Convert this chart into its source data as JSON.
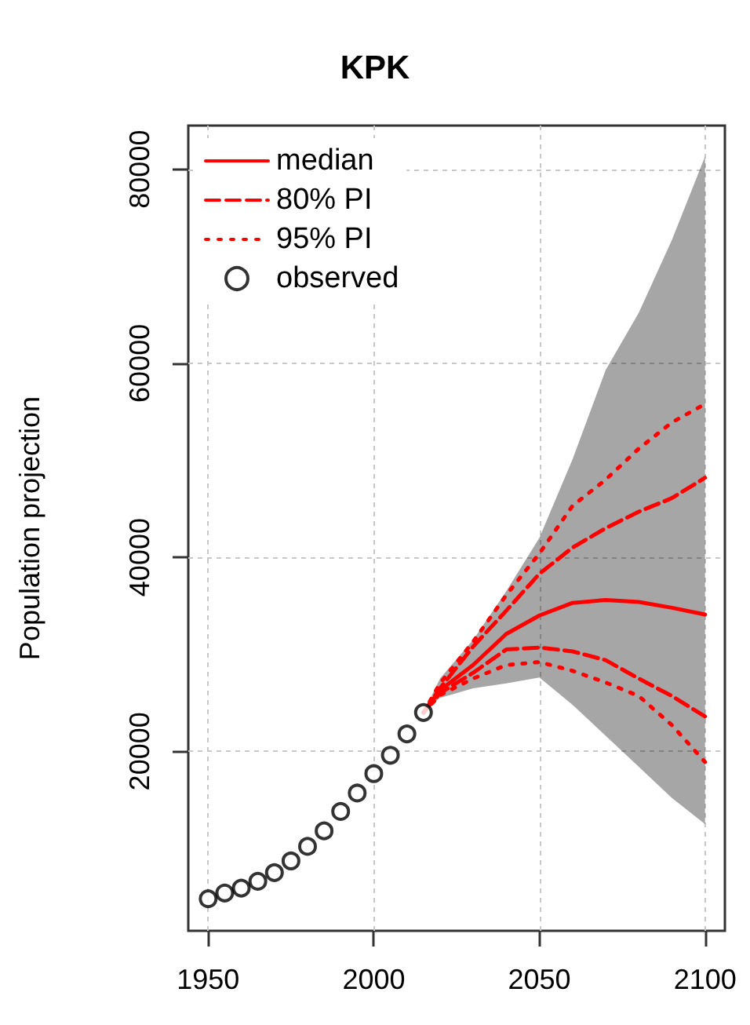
{
  "chart_data": {
    "type": "line",
    "title": "KPK",
    "ylabel": "Population projection",
    "xlim": [
      1944,
      2106
    ],
    "xticks": [
      1950,
      2000,
      2050,
      2100
    ],
    "ylim": [
      1500,
      84500
    ],
    "yticks": [
      20000,
      40000,
      60000,
      80000
    ],
    "grid": true,
    "legend": "top left",
    "series": [
      {
        "name": "median",
        "color": "#ff0000",
        "line_style": "solid",
        "marker": "none",
        "x": [
          2015,
          2020,
          2030,
          2040,
          2050,
          2060,
          2070,
          2080,
          2090,
          2100
        ],
        "values": [
          24000,
          26300,
          28900,
          32100,
          34000,
          35300,
          35600,
          35400,
          34800,
          34100
        ],
        "lower": [
          24000,
          25500,
          26500,
          27000,
          27600,
          24800,
          21600,
          18400,
          15200,
          12500
        ],
        "upper": [
          24000,
          27500,
          31500,
          36500,
          42000,
          50100,
          59300,
          65200,
          72700,
          81300
        ]
      },
      {
        "name": "80% PI",
        "color": "#ff0000",
        "line_style": "dashed",
        "marker": "none",
        "x": [
          2015,
          2020,
          2030,
          2040,
          2050,
          2060,
          2070,
          2080,
          2090,
          2100
        ],
        "values": [
          24000,
          26500,
          30800,
          34500,
          38300,
          41000,
          43000,
          44700,
          46100,
          48200
        ]
      },
      {
        "name": null,
        "color": "#ff0000",
        "line_style": "dashed",
        "marker": "none",
        "x": [
          2015,
          2020,
          2030,
          2040,
          2050,
          2060,
          2070,
          2080,
          2090,
          2100
        ],
        "values": [
          24000,
          26000,
          28100,
          30500,
          30700,
          30300,
          29400,
          27500,
          25700,
          23600
        ]
      },
      {
        "name": "95% PI",
        "color": "#ff0000",
        "line_style": "dotted",
        "marker": "none",
        "x": [
          2015,
          2020,
          2030,
          2040,
          2050,
          2060,
          2070,
          2080,
          2090,
          2100
        ],
        "values": [
          24000,
          27000,
          31300,
          36100,
          40400,
          45300,
          48000,
          51200,
          53900,
          55800
        ]
      },
      {
        "name": null,
        "color": "#ff0000",
        "line_style": "dotted",
        "marker": "none",
        "x": [
          2015,
          2020,
          2030,
          2040,
          2050,
          2060,
          2070,
          2080,
          2090,
          2100
        ],
        "values": [
          24000,
          25800,
          27500,
          28900,
          29200,
          28300,
          27100,
          25700,
          22700,
          18900
        ]
      },
      {
        "name": "observed",
        "type": "scatter",
        "color": "#000000",
        "marker": "circle",
        "x": [
          1950,
          1955,
          1960,
          1965,
          1970,
          1975,
          1980,
          1985,
          1990,
          1995,
          2000,
          2005,
          2010,
          2015
        ],
        "values": [
          4800,
          5400,
          5900,
          6600,
          7500,
          8700,
          10200,
          11800,
          13800,
          15700,
          17700,
          19600,
          21800,
          24000
        ]
      }
    ]
  }
}
